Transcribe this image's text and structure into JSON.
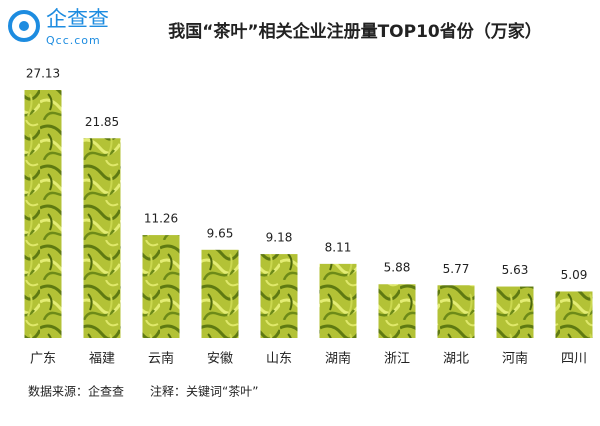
{
  "logo": {
    "name": "企查查",
    "url": "Qcc.com"
  },
  "chart_data": {
    "type": "bar",
    "title": "我国“茶叶”相关企业注册量TOP10省份（万家）",
    "categories": [
      "广东",
      "福建",
      "云南",
      "安徽",
      "山东",
      "湖南",
      "浙江",
      "湖北",
      "河南",
      "四川"
    ],
    "values": [
      27.13,
      21.85,
      11.26,
      9.65,
      9.18,
      8.11,
      5.88,
      5.77,
      5.63,
      5.09
    ],
    "color": "#b3c236"
  },
  "footer": {
    "source": "数据来源：企查查",
    "note": "注释：关键词“茶叶”"
  }
}
